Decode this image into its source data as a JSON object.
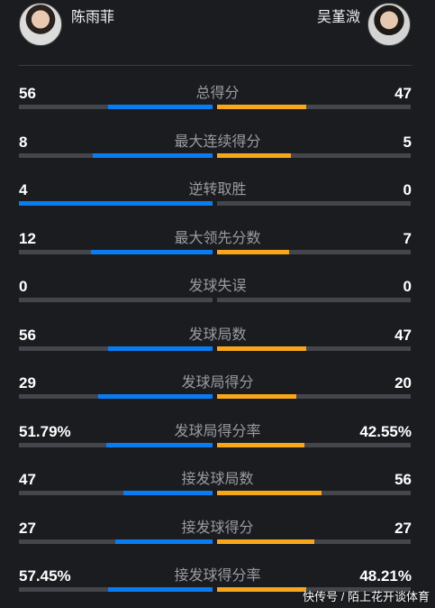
{
  "players": {
    "left": "陈雨菲",
    "right": "吴堇溦"
  },
  "colors": {
    "left": "#0a7cf2",
    "right": "#f7a81a",
    "track": "#45464b"
  },
  "stats": [
    {
      "label": "总得分",
      "left": "56",
      "right": "47",
      "left_share": 0.54,
      "right_share": 0.46
    },
    {
      "label": "最大连续得分",
      "left": "8",
      "right": "5",
      "left_share": 0.62,
      "right_share": 0.38
    },
    {
      "label": "逆转取胜",
      "left": "4",
      "right": "0",
      "left_share": 1.0,
      "right_share": 0.0
    },
    {
      "label": "最大领先分数",
      "left": "12",
      "right": "7",
      "left_share": 0.63,
      "right_share": 0.37
    },
    {
      "label": "发球失误",
      "left": "0",
      "right": "0",
      "left_share": 0.0,
      "right_share": 0.0
    },
    {
      "label": "发球局数",
      "left": "56",
      "right": "47",
      "left_share": 0.54,
      "right_share": 0.46
    },
    {
      "label": "发球局得分",
      "left": "29",
      "right": "20",
      "left_share": 0.59,
      "right_share": 0.41
    },
    {
      "label": "发球局得分率",
      "left": "51.79%",
      "right": "42.55%",
      "left_share": 0.55,
      "right_share": 0.45
    },
    {
      "label": "接发球局数",
      "left": "47",
      "right": "56",
      "left_share": 0.46,
      "right_share": 0.54
    },
    {
      "label": "接发球得分",
      "left": "27",
      "right": "27",
      "left_share": 0.5,
      "right_share": 0.5
    },
    {
      "label": "接发球得分率",
      "left": "57.45%",
      "right": "48.21%",
      "left_share": 0.54,
      "right_share": 0.46
    }
  ],
  "watermark": "快传号 / 陌上花开谈体育"
}
